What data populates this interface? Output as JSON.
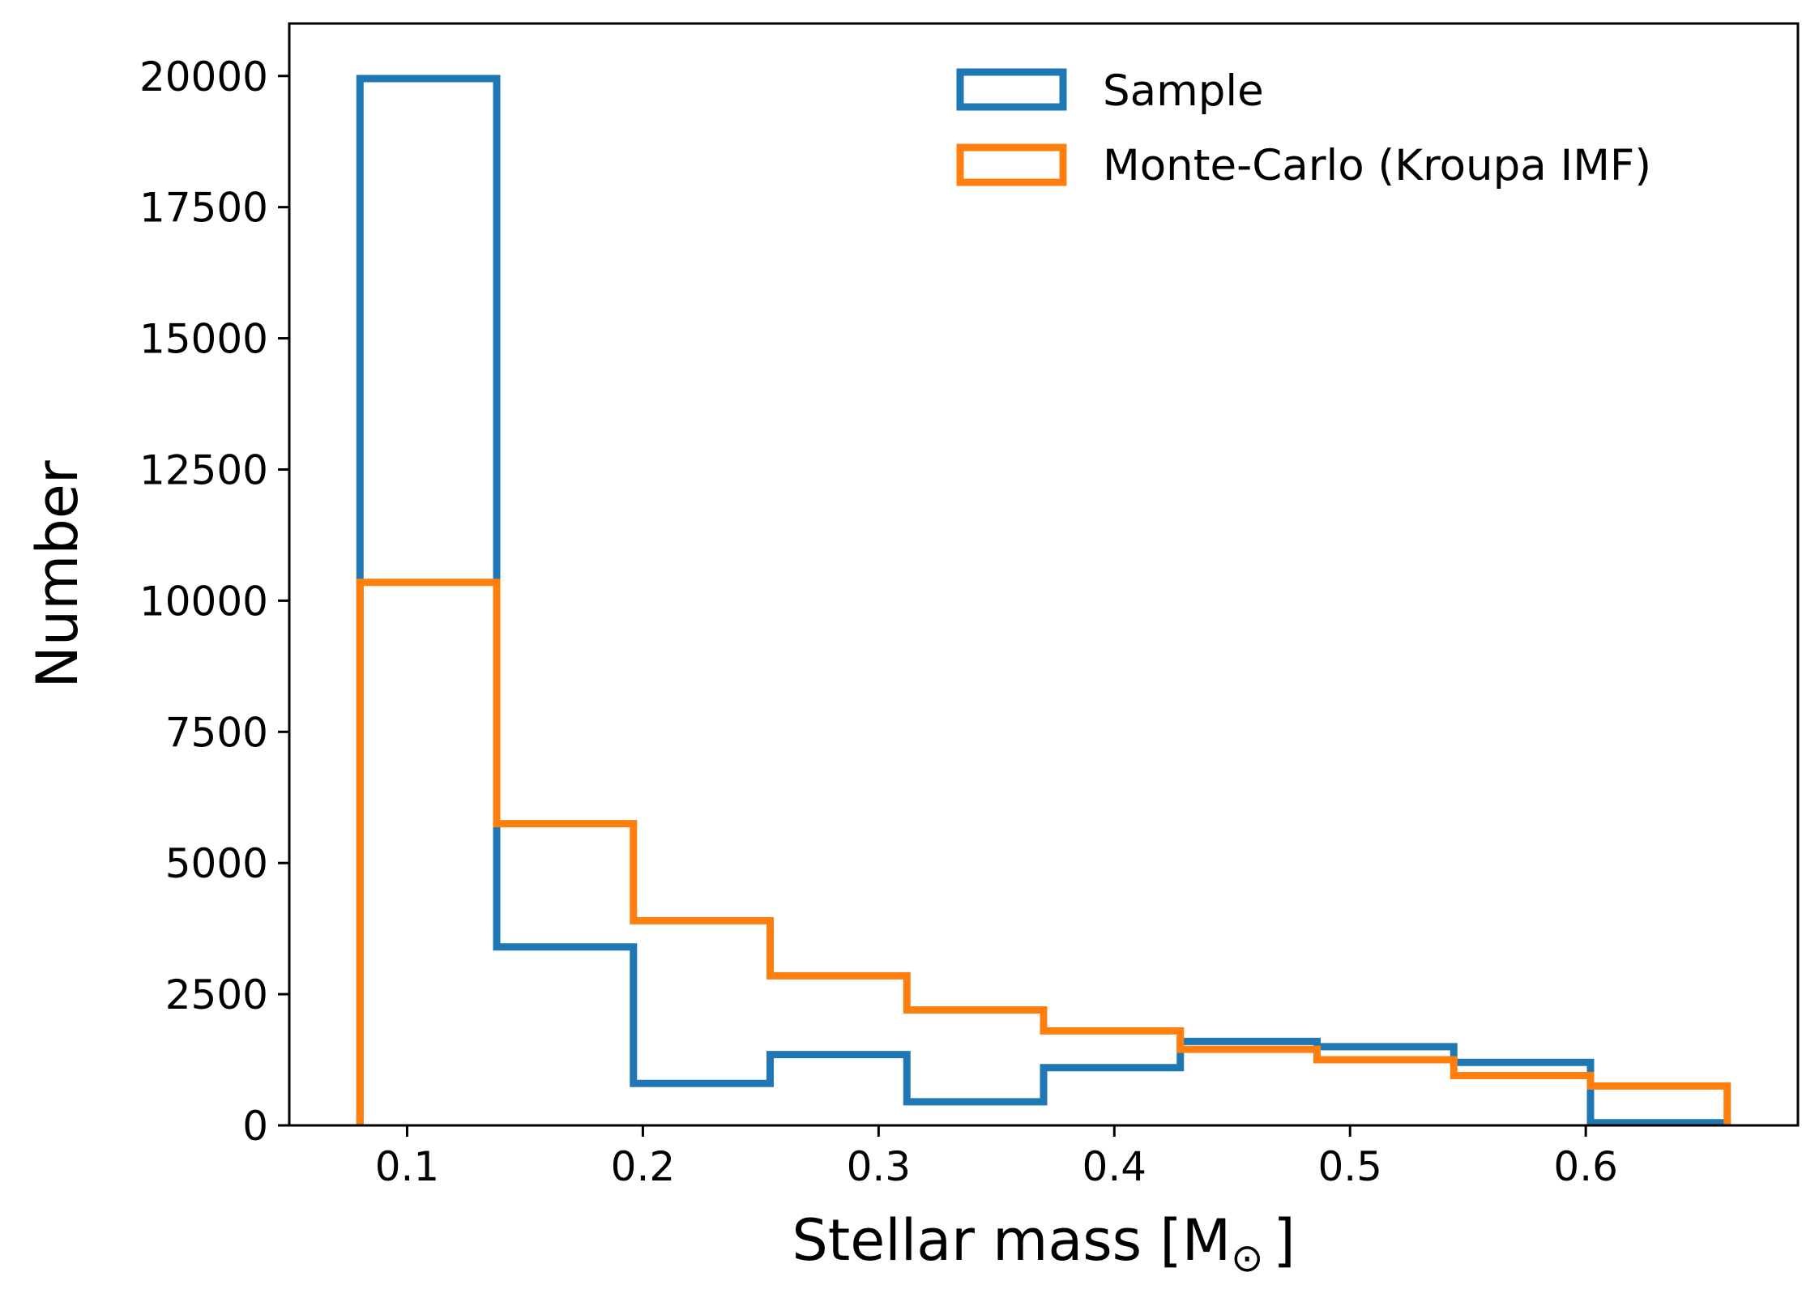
{
  "chart_data": {
    "type": "histogram-step",
    "title": "",
    "xlabel_main": "Stellar mass [M",
    "xlabel_sub": "⊙",
    "xlabel_close": "]",
    "ylabel": "Number",
    "xlim": [
      0.05,
      0.69
    ],
    "ylim": [
      0,
      21000
    ],
    "xticks": [
      0.1,
      0.2,
      0.3,
      0.4,
      0.5,
      0.6
    ],
    "xtick_labels": [
      "0.1",
      "0.2",
      "0.3",
      "0.4",
      "0.5",
      "0.6"
    ],
    "yticks": [
      0,
      2500,
      5000,
      7500,
      10000,
      12500,
      15000,
      17500,
      20000
    ],
    "ytick_labels": [
      "0",
      "2500",
      "5000",
      "7500",
      "10000",
      "12500",
      "15000",
      "17500",
      "20000"
    ],
    "bin_edges": [
      0.08,
      0.138,
      0.196,
      0.254,
      0.312,
      0.37,
      0.428,
      0.486,
      0.544,
      0.602,
      0.66
    ],
    "legend_position": "top-right",
    "series": [
      {
        "name": "Sample",
        "color": "#1f77b4",
        "values": [
          19950,
          3400,
          800,
          1350,
          450,
          1100,
          1600,
          1500,
          1200,
          50
        ]
      },
      {
        "name": "Monte-Carlo (Kroupa IMF)",
        "color": "#ff7f0e",
        "values": [
          10350,
          5750,
          3900,
          2850,
          2200,
          1800,
          1450,
          1250,
          950,
          750
        ]
      }
    ]
  }
}
